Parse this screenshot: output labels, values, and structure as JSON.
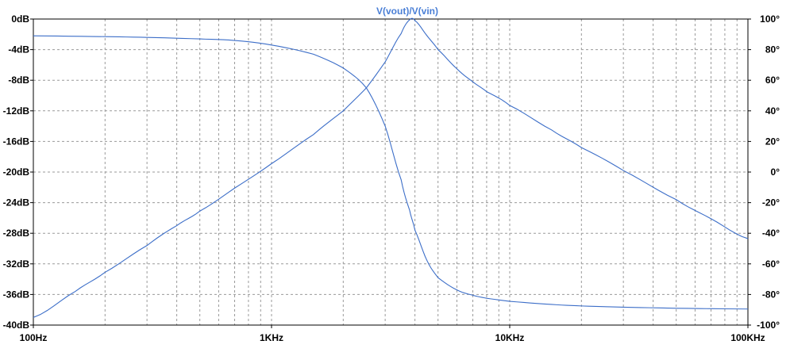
{
  "chart_data": {
    "type": "line",
    "title": "V(vout)/V(vin)",
    "title_color": "#4a7fd6",
    "line_color": "#3c6ec8",
    "grid": true,
    "grid_style": "dashed",
    "x_scale": "log",
    "xlim": [
      100,
      100000
    ],
    "x_ticks": [
      {
        "value": 100,
        "label": "100Hz"
      },
      {
        "value": 1000,
        "label": "1KHz"
      },
      {
        "value": 10000,
        "label": "10KHz"
      },
      {
        "value": 100000,
        "label": "100KHz"
      }
    ],
    "left_axis": {
      "ylim": [
        -40,
        0
      ],
      "ticks": [
        {
          "value": 0,
          "label": "0dB"
        },
        {
          "value": -4,
          "label": "-4dB"
        },
        {
          "value": -8,
          "label": "-8dB"
        },
        {
          "value": -12,
          "label": "-12dB"
        },
        {
          "value": -16,
          "label": "-16dB"
        },
        {
          "value": -20,
          "label": "-20dB"
        },
        {
          "value": -24,
          "label": "-24dB"
        },
        {
          "value": -28,
          "label": "-28dB"
        },
        {
          "value": -32,
          "label": "-32dB"
        },
        {
          "value": -36,
          "label": "-36dB"
        },
        {
          "value": -40,
          "label": "-40dB"
        }
      ]
    },
    "right_axis": {
      "ylim": [
        -100,
        100
      ],
      "ticks": [
        {
          "value": 100,
          "label": "100°"
        },
        {
          "value": 80,
          "label": "80°"
        },
        {
          "value": 60,
          "label": "60°"
        },
        {
          "value": 40,
          "label": "40°"
        },
        {
          "value": 20,
          "label": "20°"
        },
        {
          "value": 0,
          "label": "0°"
        },
        {
          "value": -20,
          "label": "-20°"
        },
        {
          "value": -40,
          "label": "-40°"
        },
        {
          "value": -60,
          "label": "-60°"
        },
        {
          "value": -80,
          "label": "-80°"
        },
        {
          "value": -100,
          "label": "-100°"
        }
      ]
    },
    "series": [
      {
        "axis": "left",
        "x": [
          100,
          150,
          200,
          300,
          400,
          500,
          700,
          1000,
          1500,
          2000,
          2500,
          3000,
          3500,
          3800,
          4000,
          4500,
          5000,
          6000,
          7000,
          8000,
          10000,
          15000,
          20000,
          30000,
          50000,
          70000,
          100000
        ],
        "y": [
          -39.0,
          -35.6,
          -33.1,
          -29.6,
          -27.0,
          -25.1,
          -22.1,
          -18.9,
          -15.1,
          -12.0,
          -9.0,
          -5.6,
          -1.9,
          -0.1,
          -0.2,
          -2.2,
          -4.0,
          -6.5,
          -8.2,
          -9.5,
          -11.3,
          -14.5,
          -16.8,
          -19.8,
          -23.6,
          -26.1,
          -28.7
        ]
      },
      {
        "axis": "right",
        "x": [
          100,
          200,
          300,
          500,
          700,
          1000,
          1500,
          2000,
          2500,
          3000,
          3500,
          3800,
          4000,
          4500,
          5000,
          6000,
          7000,
          8000,
          10000,
          15000,
          20000,
          30000,
          50000,
          100000
        ],
        "y": [
          89,
          88.5,
          88,
          87,
          86,
          83,
          77,
          68,
          55,
          30,
          -5,
          -25,
          -38,
          -58,
          -69,
          -77,
          -80.5,
          -82.5,
          -84.5,
          -86.5,
          -87.5,
          -88.3,
          -89,
          -89.5
        ]
      }
    ]
  }
}
